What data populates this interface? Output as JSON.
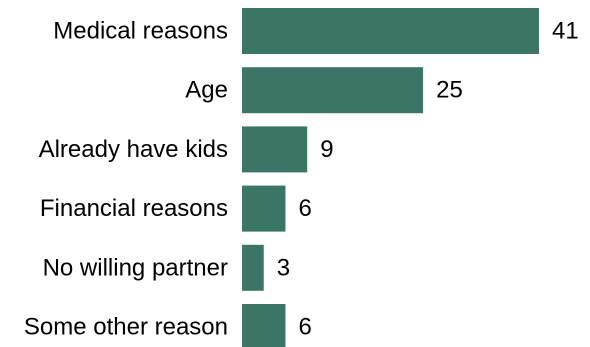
{
  "colors": {
    "bar": "#3a7565",
    "text": "#000000",
    "background": "#ffffff"
  },
  "chart_data": {
    "type": "bar",
    "orientation": "horizontal",
    "categories": [
      "Medical reasons",
      "Age",
      "Already have kids",
      "Financial reasons",
      "No willing partner",
      "Some other reason"
    ],
    "values": [
      41,
      25,
      9,
      6,
      3,
      6
    ],
    "data_labels": [
      "41",
      "25",
      "9",
      "6",
      "3",
      "6"
    ],
    "title": "",
    "xlabel": "",
    "ylabel": "",
    "xlim": [
      0,
      41
    ],
    "grid": false,
    "legend": "none"
  }
}
